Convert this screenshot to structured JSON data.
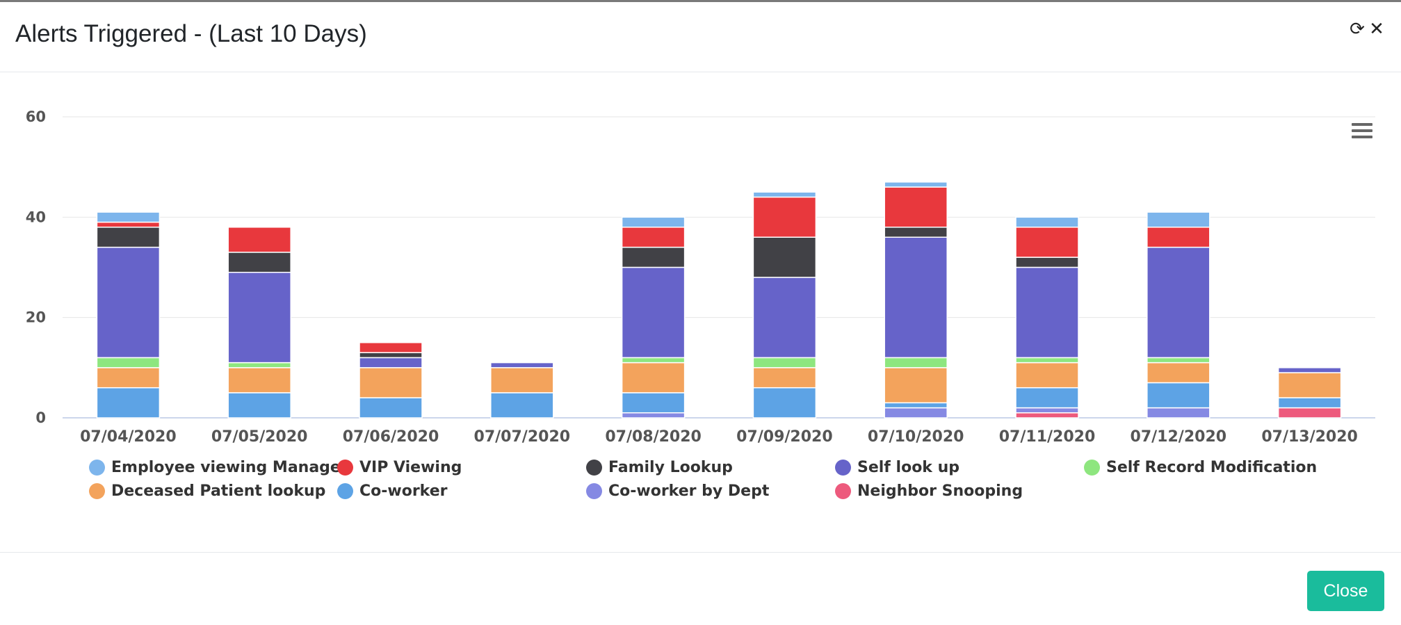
{
  "modal": {
    "title": "Alerts Triggered - (Last 10 Days)",
    "refresh_icon": "refresh-icon",
    "close_icon": "close-icon",
    "menu_icon": "hamburger-menu-icon",
    "close_button_label": "Close",
    "close_button_color": "#1abc9c"
  },
  "chart_data": {
    "type": "bar",
    "stacked": true,
    "categories": [
      "07/04/2020",
      "07/05/2020",
      "07/06/2020",
      "07/07/2020",
      "07/08/2020",
      "07/09/2020",
      "07/10/2020",
      "07/11/2020",
      "07/12/2020",
      "07/13/2020"
    ],
    "ylim": [
      0,
      60
    ],
    "yticks": [
      0,
      20,
      40,
      60
    ],
    "grid": true,
    "legend_position": "bottom",
    "series": [
      {
        "name": "Neighbor Snooping",
        "color": "#ed5a7d",
        "values": [
          0,
          0,
          0,
          0,
          0,
          0,
          0,
          1,
          0,
          2
        ]
      },
      {
        "name": "Co-worker by Dept",
        "color": "#8589e3",
        "values": [
          0,
          0,
          0,
          0,
          1,
          0,
          2,
          1,
          2,
          0
        ]
      },
      {
        "name": "Co-worker",
        "color": "#5da3e5",
        "values": [
          6,
          5,
          4,
          5,
          4,
          6,
          1,
          4,
          5,
          2
        ]
      },
      {
        "name": "Deceased Patient lookup",
        "color": "#f3a35c",
        "values": [
          4,
          5,
          6,
          5,
          6,
          4,
          7,
          5,
          4,
          5
        ]
      },
      {
        "name": "Self Record Modification",
        "color": "#8ee67f",
        "values": [
          2,
          1,
          0,
          0,
          1,
          2,
          2,
          1,
          1,
          0
        ]
      },
      {
        "name": "Self look up",
        "color": "#6663c9",
        "values": [
          22,
          18,
          2,
          1,
          18,
          16,
          24,
          18,
          22,
          1
        ]
      },
      {
        "name": "Family Lookup",
        "color": "#414146",
        "values": [
          4,
          4,
          1,
          0,
          4,
          8,
          2,
          2,
          0,
          0
        ]
      },
      {
        "name": "VIP Viewing",
        "color": "#e8383d",
        "values": [
          1,
          5,
          2,
          0,
          4,
          8,
          8,
          6,
          4,
          0
        ]
      },
      {
        "name": "Employee viewing Manager",
        "color": "#7db5ec",
        "values": [
          2,
          0,
          0,
          0,
          2,
          1,
          1,
          2,
          3,
          0
        ]
      }
    ],
    "legend_order": [
      "Employee viewing Manager",
      "VIP Viewing",
      "Family Lookup",
      "Self look up",
      "Self Record Modification",
      "Deceased Patient lookup",
      "Co-worker",
      "Co-worker by Dept",
      "Neighbor Snooping"
    ]
  }
}
